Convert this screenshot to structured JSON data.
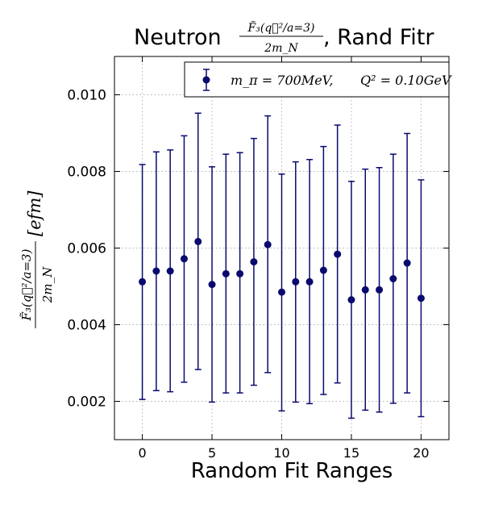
{
  "chart_data": {
    "type": "scatter",
    "title": {
      "prefix": "Neutron ",
      "fraction_numerator": "F̃₃(q⃗²/a=3)",
      "fraction_denominator": "2m_N",
      "suffix": ", Rand Fitr"
    },
    "xlabel": "Random Fit Ranges",
    "ylabel": {
      "fraction_numerator": "F̃₃(q⃗²/a=3)",
      "fraction_denominator": "2m_N",
      "unit": "[efm]"
    },
    "xlim": [
      -2,
      22
    ],
    "ylim": [
      0.001,
      0.011
    ],
    "xticks": [
      0,
      5,
      10,
      15,
      20
    ],
    "xtick_labels": [
      "0",
      "5",
      "10",
      "15",
      "20"
    ],
    "yticks": [
      0.002,
      0.004,
      0.006,
      0.008,
      0.01
    ],
    "ytick_labels": [
      "0.002",
      "0.004",
      "0.006",
      "0.008",
      "0.010"
    ],
    "grid": true,
    "legend": {
      "position": "top-right",
      "label_left": "m_π = 700MeV,",
      "label_right": "Q² = 0.10GeV"
    },
    "series": [
      {
        "name": "m_π = 700MeV,     Q² = 0.10GeV",
        "color": "#0a0a6e",
        "x": [
          0,
          1,
          2,
          3,
          4,
          5,
          6,
          7,
          8,
          9,
          10,
          11,
          12,
          13,
          14,
          15,
          16,
          17,
          18,
          19,
          20
        ],
        "y": [
          0.00512,
          0.0054,
          0.0054,
          0.00572,
          0.00617,
          0.00505,
          0.00533,
          0.00533,
          0.00564,
          0.00609,
          0.00485,
          0.00512,
          0.00512,
          0.00542,
          0.00584,
          0.00465,
          0.00491,
          0.00491,
          0.0052,
          0.00561,
          0.00469
        ],
        "y_lower": [
          0.00205,
          0.00228,
          0.00225,
          0.0025,
          0.00283,
          0.00198,
          0.00222,
          0.00222,
          0.00242,
          0.00275,
          0.00175,
          0.00198,
          0.00194,
          0.00218,
          0.00248,
          0.00156,
          0.00177,
          0.00172,
          0.00195,
          0.00222,
          0.0016
        ],
        "y_upper": [
          0.00818,
          0.00851,
          0.00856,
          0.00893,
          0.00952,
          0.00812,
          0.00845,
          0.00849,
          0.00886,
          0.00945,
          0.00793,
          0.00825,
          0.00831,
          0.00865,
          0.00921,
          0.00774,
          0.00806,
          0.0081,
          0.00845,
          0.00899,
          0.00778
        ]
      }
    ]
  }
}
